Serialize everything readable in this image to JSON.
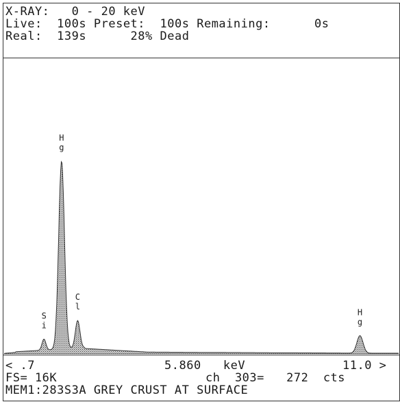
{
  "header": {
    "line1": {
      "label": "X-RAY:",
      "value": "0 - 20 keV"
    },
    "line2": {
      "live_label": "Live:",
      "live_value": "100s",
      "preset_label": "Preset:",
      "preset_value": "100s",
      "remaining_label": "Remaining:",
      "remaining_value": "0s"
    },
    "line3": {
      "real_label": "Real:",
      "real_value": "139s",
      "dead_value": "28% Dead"
    }
  },
  "footer": {
    "range_left": "< .7",
    "cursor_energy": "5.860",
    "cursor_unit": "keV",
    "range_right": "11.0 >",
    "fs": "FS= 16K",
    "channel": "ch  303=",
    "counts": "272",
    "counts_unit": "cts",
    "memo": "MEM1:283S3A GREY CRUST AT SURFACE"
  },
  "chart_data": {
    "type": "area",
    "x_unit": "keV",
    "xlim": [
      0.7,
      11.0
    ],
    "ylim": [
      0,
      16000
    ],
    "grid": false,
    "full_scale": "16K",
    "peaks": [
      {
        "label": "Si",
        "energy": 1.74,
        "height": 600
      },
      {
        "label": "Hg",
        "energy": 2.2,
        "height": 10200
      },
      {
        "label": "Cl",
        "energy": 2.62,
        "height": 1500
      },
      {
        "label": "Hg",
        "energy": 9.99,
        "height": 950
      }
    ],
    "cursor": {
      "energy": 5.86,
      "channel": 303,
      "counts": 272
    }
  }
}
